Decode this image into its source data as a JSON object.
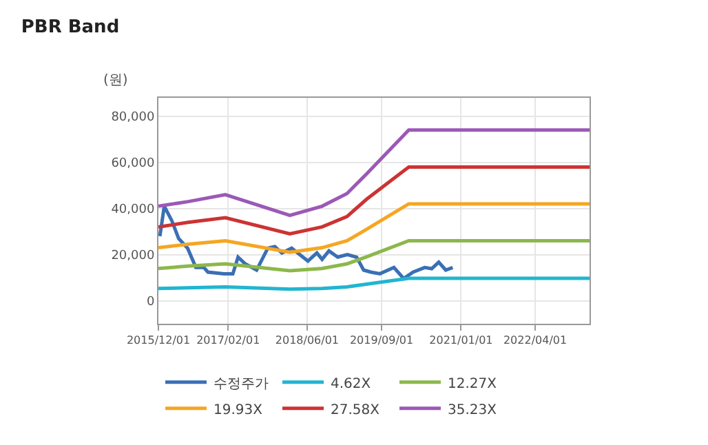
{
  "chart_data": {
    "type": "line",
    "title": "PBR Band",
    "ylabel": "(원)",
    "legend": "bottom",
    "grid": true,
    "marker": "none",
    "line_style": "solid",
    "xlim": [
      "2015-12-01",
      "2023-03-01"
    ],
    "ylim": [
      -10000,
      88000
    ],
    "xticks": [
      {
        "value": "2015-12-01",
        "label": "2015/12/01"
      },
      {
        "value": "2017-02-01",
        "label": "2017/02/01"
      },
      {
        "value": "2018-06-01",
        "label": "2018/06/01"
      },
      {
        "value": "2019-09-01",
        "label": "2019/09/01"
      },
      {
        "value": "2021-01-01",
        "label": "2021/01/01"
      },
      {
        "value": "2022-04-01",
        "label": "2022/04/01"
      }
    ],
    "yticks": [
      {
        "value": 0,
        "label": "0"
      },
      {
        "value": 20000,
        "label": "20,000"
      },
      {
        "value": 40000,
        "label": "40,000"
      },
      {
        "value": 60000,
        "label": "60,000"
      },
      {
        "value": 80000,
        "label": "80,000"
      }
    ],
    "series": [
      {
        "name": "수정주가",
        "color": "#3a6fb5",
        "x": [
          "2015-12-10",
          "2016-01-06",
          "2016-02-22",
          "2016-04-03",
          "2016-05-28",
          "2016-07-18",
          "2016-09-05",
          "2016-09-30",
          "2017-01-07",
          "2017-03-02",
          "2017-04-03",
          "2017-05-15",
          "2017-07-26",
          "2017-10-03",
          "2017-11-15",
          "2017-12-28",
          "2018-02-26",
          "2018-06-06",
          "2018-07-31",
          "2018-09-01",
          "2018-10-13",
          "2018-12-06",
          "2019-02-03",
          "2019-04-01",
          "2019-05-14",
          "2019-06-27",
          "2019-08-22",
          "2019-11-16",
          "2020-01-15",
          "2020-03-13",
          "2020-05-23",
          "2020-07-05",
          "2020-08-17",
          "2020-09-29",
          "2020-11-11"
        ],
        "values": [
          28000,
          41000,
          34600,
          27000,
          22800,
          14400,
          14400,
          12400,
          11700,
          11700,
          18900,
          16100,
          13300,
          22800,
          23500,
          20700,
          22800,
          17200,
          20700,
          17900,
          21600,
          18900,
          20000,
          18900,
          13300,
          12400,
          11700,
          14400,
          9600,
          12400,
          14400,
          13900,
          16700,
          13300,
          14400
        ]
      },
      {
        "name": "4.62X",
        "color": "#22b5d0",
        "x": [
          "2015-12-01",
          "2016-06-01",
          "2017-01-15",
          "2018-02-15",
          "2018-09-01",
          "2019-02-01",
          "2019-06-01",
          "2020-02-15",
          "2023-03-01"
        ],
        "values": [
          5300,
          5600,
          6000,
          5000,
          5300,
          6000,
          7200,
          9700,
          9700
        ]
      },
      {
        "name": "12.27X",
        "color": "#8cb84a",
        "x": [
          "2015-12-01",
          "2016-06-01",
          "2017-01-15",
          "2018-02-15",
          "2018-09-01",
          "2019-02-01",
          "2019-06-01",
          "2020-02-15",
          "2023-03-01"
        ],
        "values": [
          14000,
          15000,
          16000,
          13000,
          14000,
          16000,
          19000,
          26000,
          26000
        ]
      },
      {
        "name": "19.93X",
        "color": "#f5a623",
        "x": [
          "2015-12-01",
          "2016-06-01",
          "2017-01-15",
          "2018-02-15",
          "2018-09-01",
          "2019-02-01",
          "2019-06-01",
          "2020-02-15",
          "2023-03-01"
        ],
        "values": [
          23000,
          24500,
          26000,
          21000,
          23000,
          26000,
          31000,
          42000,
          42000
        ]
      },
      {
        "name": "27.58X",
        "color": "#cc3333",
        "x": [
          "2015-12-01",
          "2016-06-01",
          "2017-01-15",
          "2018-02-15",
          "2018-09-01",
          "2019-02-01",
          "2019-06-01",
          "2020-02-15",
          "2023-03-01"
        ],
        "values": [
          32000,
          34000,
          36000,
          29000,
          32000,
          36500,
          44000,
          58000,
          58000
        ]
      },
      {
        "name": "35.23X",
        "color": "#9b59b6",
        "x": [
          "2015-12-01",
          "2016-06-01",
          "2017-01-15",
          "2018-02-15",
          "2018-09-01",
          "2019-02-01",
          "2019-06-01",
          "2020-02-15",
          "2023-03-01"
        ],
        "values": [
          41000,
          43000,
          46000,
          37000,
          41000,
          46500,
          55000,
          74000,
          74000
        ]
      }
    ]
  }
}
